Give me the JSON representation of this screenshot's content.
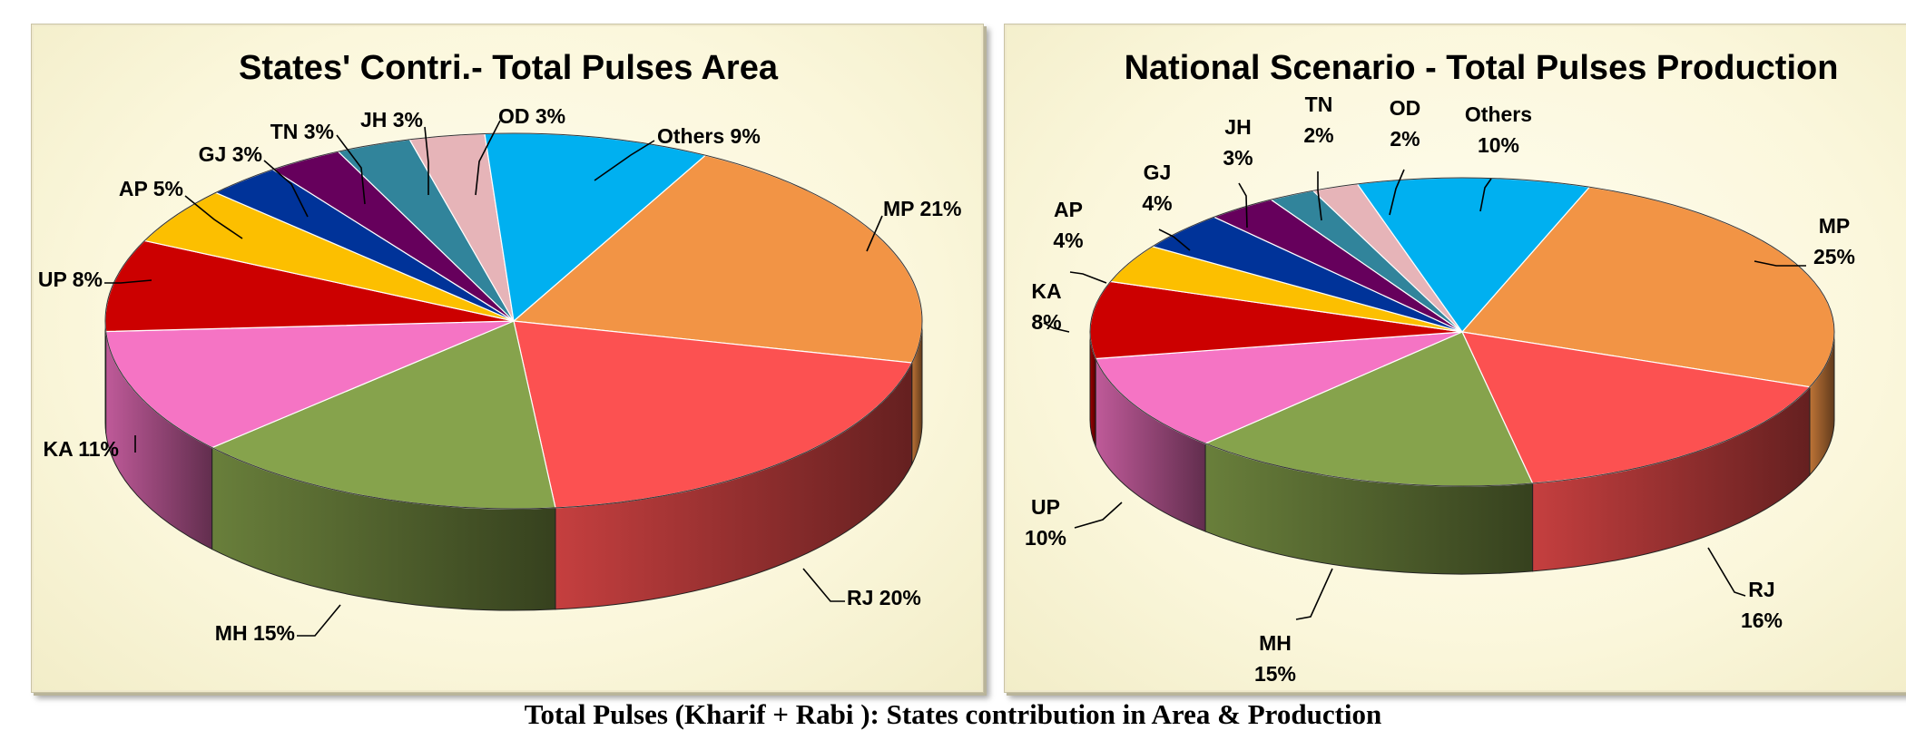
{
  "chart_data": [
    {
      "type": "pie",
      "title": "States' Contri.- Total Pulses Area",
      "slices": [
        {
          "label": "MP 21%",
          "value": 21,
          "color": "#f29445"
        },
        {
          "label": "RJ 20%",
          "value": 20,
          "color": "#fc5151"
        },
        {
          "label": "MH 15%",
          "value": 15,
          "color": "#86a34c"
        },
        {
          "label": "KA 11%",
          "value": 11,
          "color": "#f574c4"
        },
        {
          "label": "UP 8%",
          "value": 8,
          "color": "#cc0000"
        },
        {
          "label": "AP 5%",
          "value": 5,
          "color": "#fcbf00"
        },
        {
          "label": "GJ 3%",
          "value": 3,
          "color": "#003399"
        },
        {
          "label": "TN 3%",
          "value": 3,
          "color": "#66005c"
        },
        {
          "label": "JH 3%",
          "value": 3,
          "color": "#31849b"
        },
        {
          "label": "OD 3%",
          "value": 3,
          "color": "#e6b4b8"
        },
        {
          "label": "Others 9%",
          "value": 9,
          "color": "#00b0f0"
        }
      ]
    },
    {
      "type": "pie",
      "title": "National Scenario - Total Pulses Production",
      "slices": [
        {
          "label": "MP\n25%",
          "value": 25,
          "color": "#f29445"
        },
        {
          "label": "RJ\n16%",
          "value": 16,
          "color": "#fc5151"
        },
        {
          "label": "MH\n15%",
          "value": 15,
          "color": "#86a34c"
        },
        {
          "label": "UP\n10%",
          "value": 10,
          "color": "#f574c4"
        },
        {
          "label": "KA\n8%",
          "value": 8,
          "color": "#cc0000"
        },
        {
          "label": "AP\n4%",
          "value": 4,
          "color": "#fcbf00"
        },
        {
          "label": "GJ\n4%",
          "value": 4,
          "color": "#003399"
        },
        {
          "label": "JH\n3%",
          "value": 3,
          "color": "#66005c"
        },
        {
          "label": "TN\n2%",
          "value": 2,
          "color": "#31849b"
        },
        {
          "label": "OD\n2%",
          "value": 2,
          "color": "#e6b4b8"
        },
        {
          "label": "Others\n10%",
          "value": 10,
          "color": "#00b0f0"
        }
      ]
    }
  ],
  "caption": "Total Pulses (Kharif + Rabi ): States contribution in Area & Production"
}
